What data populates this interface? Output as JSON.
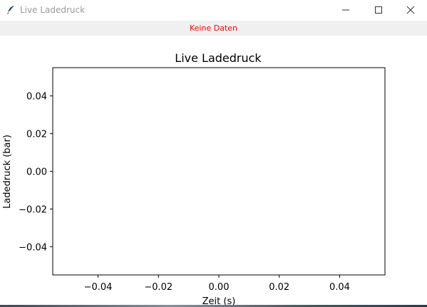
{
  "window": {
    "title": "Live Ladedruck",
    "icon": "feather-icon",
    "controls": [
      "minimize-icon",
      "maximize-icon",
      "close-icon"
    ]
  },
  "status": {
    "text": "Keine Daten",
    "color": "#ff0000"
  },
  "chart_data": {
    "type": "line",
    "title": "Live Ladedruck",
    "xlabel": "Zeit (s)",
    "ylabel": "Ladedruck (bar)",
    "xlim": [
      -0.055,
      0.055
    ],
    "ylim": [
      -0.055,
      0.055
    ],
    "xticks": [
      -0.04,
      -0.02,
      0.0,
      0.02,
      0.04
    ],
    "xtick_labels": [
      "−0.04",
      "−0.02",
      "0.00",
      "0.02",
      "0.04"
    ],
    "yticks": [
      0.04,
      0.02,
      0.0,
      -0.02,
      -0.04
    ],
    "ytick_labels": [
      "0.04",
      "0.02",
      "0.00",
      "−0.02",
      "−0.04"
    ],
    "series": [],
    "grid": false,
    "legend": "none"
  }
}
